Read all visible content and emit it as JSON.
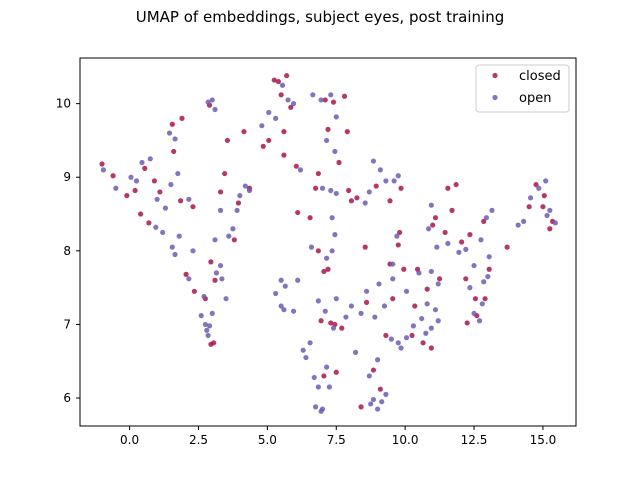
{
  "chart_data": {
    "type": "scatter",
    "title": "UMAP of embeddings, subject eyes, post training",
    "xlabel": "",
    "ylabel": "",
    "xlim": [
      -1.8,
      16.2
    ],
    "ylim": [
      5.62,
      10.62
    ],
    "xticks": [
      0.0,
      2.5,
      5.0,
      7.5,
      10.0,
      12.5,
      15.0
    ],
    "xtick_labels": [
      "0.0",
      "2.5",
      "5.0",
      "7.5",
      "10.0",
      "12.5",
      "15.0"
    ],
    "yticks": [
      6,
      7,
      8,
      9,
      10
    ],
    "ytick_labels": [
      "6",
      "7",
      "8",
      "9",
      "10"
    ],
    "grid": false,
    "legend_position": "top-right",
    "series": [
      {
        "name": "closed",
        "color": "#A8154E",
        "points": [
          [
            -1.0,
            9.18
          ],
          [
            -0.6,
            9.02
          ],
          [
            -0.1,
            8.75
          ],
          [
            0.2,
            8.82
          ],
          [
            0.55,
            9.12
          ],
          [
            0.9,
            8.95
          ],
          [
            0.4,
            8.5
          ],
          [
            1.1,
            8.8
          ],
          [
            0.7,
            8.38
          ],
          [
            1.6,
            9.35
          ],
          [
            1.9,
            9.8
          ],
          [
            1.55,
            9.72
          ],
          [
            2.3,
            8.6
          ],
          [
            1.85,
            8.68
          ],
          [
            2.05,
            7.68
          ],
          [
            2.35,
            7.45
          ],
          [
            2.75,
            7.35
          ],
          [
            2.95,
            7.85
          ],
          [
            3.05,
            6.75
          ],
          [
            2.95,
            6.73
          ],
          [
            3.1,
            7.6
          ],
          [
            3.3,
            8.8
          ],
          [
            3.45,
            9.05
          ],
          [
            2.9,
            9.98
          ],
          [
            3.55,
            9.5
          ],
          [
            3.95,
            8.65
          ],
          [
            4.15,
            9.62
          ],
          [
            4.35,
            8.85
          ],
          [
            4.85,
            9.42
          ],
          [
            5.05,
            9.5
          ],
          [
            5.25,
            10.32
          ],
          [
            5.4,
            10.3
          ],
          [
            5.5,
            10.12
          ],
          [
            5.7,
            10.38
          ],
          [
            5.6,
            9.62
          ],
          [
            5.85,
            9.95
          ],
          [
            5.6,
            9.3
          ],
          [
            6.05,
            9.15
          ],
          [
            6.55,
            8.45
          ],
          [
            6.75,
            8.85
          ],
          [
            6.85,
            8.0
          ],
          [
            7.05,
            7.72
          ],
          [
            7.2,
            7.75
          ],
          [
            6.95,
            7.05
          ],
          [
            7.3,
            7.02
          ],
          [
            7.45,
            7.0
          ],
          [
            7.7,
            6.95
          ],
          [
            7.5,
            6.35
          ],
          [
            7.05,
            6.3
          ],
          [
            7.1,
            10.05
          ],
          [
            7.4,
            10.02
          ],
          [
            7.2,
            9.65
          ],
          [
            7.9,
            9.62
          ],
          [
            7.6,
            9.2
          ],
          [
            8.05,
            8.68
          ],
          [
            8.25,
            8.72
          ],
          [
            8.55,
            8.05
          ],
          [
            8.95,
            8.88
          ],
          [
            9.45,
            8.68
          ],
          [
            9.85,
            8.85
          ],
          [
            9.8,
            8.25
          ],
          [
            9.75,
            8.08
          ],
          [
            9.95,
            7.75
          ],
          [
            10.35,
            7.25
          ],
          [
            10.25,
            6.85
          ],
          [
            10.65,
            6.75
          ],
          [
            10.95,
            6.68
          ],
          [
            10.8,
            7.48
          ],
          [
            11.25,
            7.62
          ],
          [
            11.0,
            8.35
          ],
          [
            11.1,
            8.45
          ],
          [
            11.45,
            8.25
          ],
          [
            11.7,
            8.55
          ],
          [
            11.55,
            8.85
          ],
          [
            11.85,
            8.9
          ],
          [
            12.05,
            8.12
          ],
          [
            12.35,
            8.22
          ],
          [
            12.2,
            7.62
          ],
          [
            12.55,
            7.35
          ],
          [
            12.25,
            7.02
          ],
          [
            12.6,
            7.12
          ],
          [
            12.85,
            8.4
          ],
          [
            13.05,
            7.75
          ],
          [
            12.9,
            7.35
          ],
          [
            13.7,
            8.05
          ],
          [
            14.5,
            8.6
          ],
          [
            14.75,
            8.9
          ],
          [
            15.05,
            8.75
          ],
          [
            15.25,
            8.3
          ],
          [
            15.35,
            8.4
          ],
          [
            15.0,
            8.6
          ],
          [
            9.1,
            6.12
          ],
          [
            8.85,
            6.38
          ],
          [
            9.3,
            6.85
          ],
          [
            9.55,
            7.35
          ],
          [
            8.6,
            7.3
          ],
          [
            8.4,
            5.88
          ],
          [
            9.45,
            7.82
          ],
          [
            10.45,
            7.75
          ],
          [
            7.8,
            10.1
          ],
          [
            6.1,
            8.52
          ],
          [
            6.85,
            9.05
          ],
          [
            7.95,
            8.82
          ],
          [
            3.8,
            8.15
          ]
        ]
      },
      {
        "name": "open",
        "color": "#6D5DB1",
        "points": [
          [
            -0.95,
            9.1
          ],
          [
            -0.5,
            8.85
          ],
          [
            0.05,
            9.0
          ],
          [
            0.25,
            8.95
          ],
          [
            0.45,
            9.2
          ],
          [
            0.75,
            9.25
          ],
          [
            1.0,
            8.7
          ],
          [
            1.3,
            8.58
          ],
          [
            0.95,
            8.32
          ],
          [
            1.2,
            8.25
          ],
          [
            1.45,
            9.6
          ],
          [
            1.65,
            9.52
          ],
          [
            1.75,
            9.05
          ],
          [
            1.5,
            8.9
          ],
          [
            1.8,
            8.2
          ],
          [
            1.55,
            8.05
          ],
          [
            1.65,
            7.95
          ],
          [
            2.15,
            8.7
          ],
          [
            2.3,
            8.0
          ],
          [
            2.15,
            7.62
          ],
          [
            2.6,
            7.12
          ],
          [
            2.75,
            7.0
          ],
          [
            2.8,
            6.92
          ],
          [
            2.85,
            6.85
          ],
          [
            2.9,
            6.98
          ],
          [
            2.7,
            7.38
          ],
          [
            3.0,
            7.15
          ],
          [
            3.15,
            7.7
          ],
          [
            3.3,
            7.8
          ],
          [
            3.5,
            7.35
          ],
          [
            3.35,
            7.62
          ],
          [
            3.1,
            8.15
          ],
          [
            3.3,
            8.55
          ],
          [
            3.6,
            8.2
          ],
          [
            3.75,
            8.3
          ],
          [
            3.9,
            8.55
          ],
          [
            4.0,
            8.75
          ],
          [
            4.35,
            8.82
          ],
          [
            4.2,
            8.88
          ],
          [
            2.85,
            10.02
          ],
          [
            3.0,
            10.05
          ],
          [
            3.1,
            9.92
          ],
          [
            4.8,
            9.7
          ],
          [
            5.05,
            9.88
          ],
          [
            5.3,
            9.8
          ],
          [
            5.55,
            10.25
          ],
          [
            5.75,
            10.05
          ],
          [
            5.95,
            10.0
          ],
          [
            6.2,
            9.1
          ],
          [
            5.5,
            7.6
          ],
          [
            5.5,
            7.25
          ],
          [
            5.6,
            7.2
          ],
          [
            5.3,
            7.42
          ],
          [
            5.95,
            7.18
          ],
          [
            5.65,
            7.52
          ],
          [
            6.1,
            7.6
          ],
          [
            6.3,
            6.65
          ],
          [
            6.4,
            6.55
          ],
          [
            6.55,
            6.75
          ],
          [
            6.7,
            6.28
          ],
          [
            6.85,
            6.15
          ],
          [
            6.75,
            5.88
          ],
          [
            6.95,
            5.82
          ],
          [
            7.0,
            5.85
          ],
          [
            7.25,
            6.15
          ],
          [
            7.15,
            6.42
          ],
          [
            7.4,
            6.95
          ],
          [
            6.85,
            7.32
          ],
          [
            7.1,
            7.18
          ],
          [
            7.5,
            7.35
          ],
          [
            7.85,
            7.1
          ],
          [
            8.05,
            7.25
          ],
          [
            8.2,
            6.62
          ],
          [
            8.75,
            5.92
          ],
          [
            8.85,
            5.98
          ],
          [
            9.0,
            5.85
          ],
          [
            9.15,
            5.95
          ],
          [
            9.3,
            6.05
          ],
          [
            8.7,
            6.3
          ],
          [
            9.0,
            6.52
          ],
          [
            9.5,
            6.8
          ],
          [
            9.75,
            6.75
          ],
          [
            9.85,
            6.68
          ],
          [
            10.05,
            6.82
          ],
          [
            10.3,
            6.98
          ],
          [
            10.6,
            7.08
          ],
          [
            10.75,
            6.88
          ],
          [
            10.95,
            6.95
          ],
          [
            8.4,
            7.15
          ],
          [
            8.6,
            7.45
          ],
          [
            8.9,
            7.1
          ],
          [
            9.05,
            7.55
          ],
          [
            9.25,
            7.25
          ],
          [
            9.55,
            7.62
          ],
          [
            10.05,
            7.45
          ],
          [
            10.5,
            7.7
          ],
          [
            10.8,
            7.28
          ],
          [
            11.1,
            7.2
          ],
          [
            11.2,
            7.55
          ],
          [
            10.95,
            7.72
          ],
          [
            11.2,
            7.05
          ],
          [
            12.35,
            7.5
          ],
          [
            12.5,
            7.15
          ],
          [
            12.7,
            7.05
          ],
          [
            12.8,
            7.28
          ],
          [
            12.85,
            7.58
          ],
          [
            13.0,
            7.65
          ],
          [
            12.5,
            7.8
          ],
          [
            12.75,
            8.15
          ],
          [
            12.95,
            8.45
          ],
          [
            13.15,
            8.55
          ],
          [
            13.05,
            7.92
          ],
          [
            12.2,
            8.02
          ],
          [
            11.95,
            7.98
          ],
          [
            11.55,
            8.1
          ],
          [
            11.15,
            8.05
          ],
          [
            10.85,
            8.3
          ],
          [
            10.95,
            8.62
          ],
          [
            14.1,
            8.35
          ],
          [
            14.3,
            8.4
          ],
          [
            14.55,
            8.72
          ],
          [
            14.85,
            8.85
          ],
          [
            15.1,
            8.95
          ],
          [
            15.25,
            8.55
          ],
          [
            15.45,
            8.38
          ],
          [
            15.15,
            8.48
          ],
          [
            6.65,
            10.12
          ],
          [
            6.95,
            10.05
          ],
          [
            7.3,
            10.12
          ],
          [
            7.5,
            9.82
          ],
          [
            7.15,
            9.5
          ],
          [
            7.45,
            9.35
          ],
          [
            7.0,
            8.85
          ],
          [
            7.3,
            8.82
          ],
          [
            7.5,
            8.78
          ],
          [
            7.35,
            8.45
          ],
          [
            7.45,
            8.22
          ],
          [
            7.15,
            7.9
          ],
          [
            7.35,
            8.0
          ],
          [
            6.6,
            8.05
          ],
          [
            8.55,
            8.65
          ],
          [
            8.85,
            9.22
          ],
          [
            9.1,
            9.1
          ],
          [
            9.3,
            8.95
          ],
          [
            9.6,
            8.95
          ],
          [
            9.75,
            9.02
          ],
          [
            9.7,
            8.2
          ],
          [
            9.55,
            7.82
          ],
          [
            8.7,
            8.8
          ]
        ]
      }
    ]
  }
}
